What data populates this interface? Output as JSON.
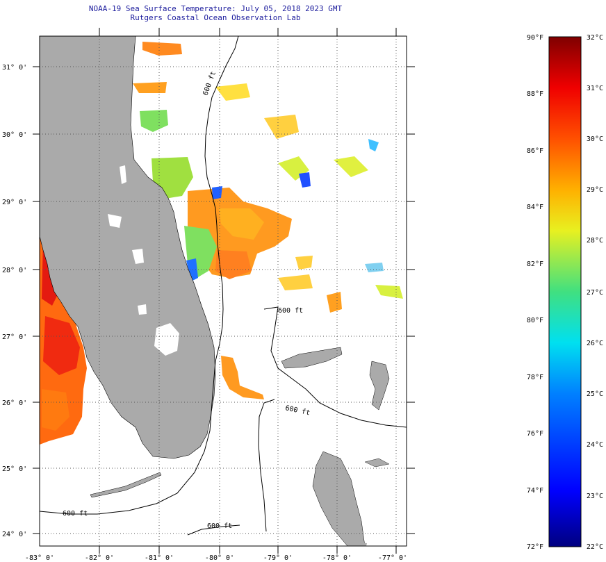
{
  "header": {
    "title": "NOAA-19 Sea Surface Temperature:  July 05, 2018 2023 GMT",
    "subtitle": "Rutgers Coastal Ocean Observation Lab"
  },
  "map": {
    "lat_labels": [
      "31° 0'",
      "30° 0'",
      "29° 0'",
      "28° 0'",
      "27° 0'",
      "26° 0'",
      "25° 0'",
      "24° 0'"
    ],
    "lon_labels": [
      "-83° 0'",
      "-82° 0'",
      "-81° 0'",
      "-80° 0'",
      "-79° 0'",
      "-78° 0'",
      "-77° 0'"
    ],
    "contours": {
      "offshore_label": "600 ft",
      "bahamas_label": "600 ft",
      "bank_label": "600 ft",
      "gulf_label": "600 ft",
      "keys_label": "600 ft"
    },
    "colors": {
      "land": "#aaaaaa",
      "water_nodata": "#ffffff",
      "contour": "#000000"
    }
  },
  "colorbar": {
    "f_labels": [
      "90°F",
      "88°F",
      "86°F",
      "84°F",
      "82°F",
      "80°F",
      "78°F",
      "76°F",
      "74°F",
      "72°F"
    ],
    "c_labels": [
      "32°C",
      "31°C",
      "30°C",
      "29°C",
      "28°C",
      "27°C",
      "26°C",
      "25°C",
      "24°C",
      "23°C",
      "22°C"
    ],
    "range_f": [
      72,
      90
    ],
    "range_c": [
      22,
      32
    ]
  }
}
